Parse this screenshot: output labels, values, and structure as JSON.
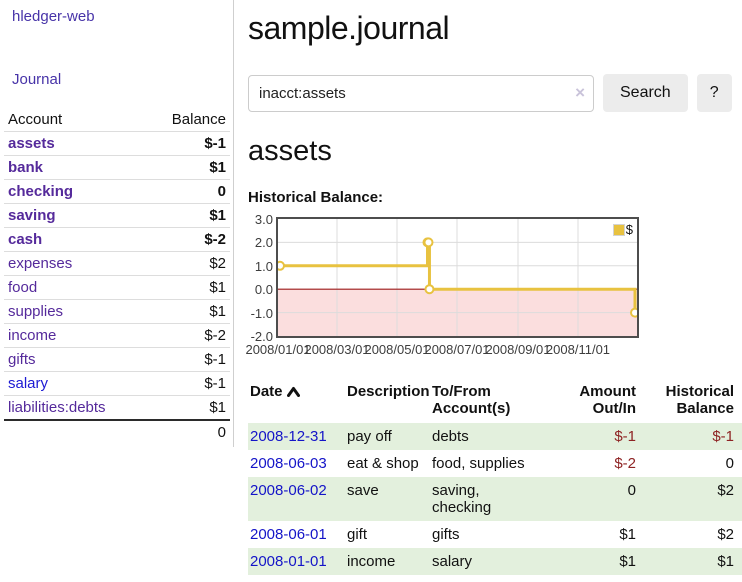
{
  "colors": {
    "link_purple": "#552a9b",
    "nav_purple": "#4733a8",
    "link_blue": "#1d1ad4",
    "date_blue": "#1414c8",
    "negative_strong": "#8b1c1c",
    "negative_soft": "#c47a7a",
    "row_green": "#e3f0dd",
    "series_gold": "#e8c240",
    "negative_area_pink": "#fbdede",
    "zero_line_red": "#9c1a1a"
  },
  "sidebar": {
    "brand": "hledger-web",
    "nav_journal": "Journal",
    "account_header": "Account",
    "balance_header": "Balance",
    "accounts": [
      {
        "name": "assets",
        "balance": "$-1"
      },
      {
        "name": "bank",
        "balance": "$1"
      },
      {
        "name": "checking",
        "balance": "0"
      },
      {
        "name": "saving",
        "balance": "$1"
      },
      {
        "name": "cash",
        "balance": "$-2"
      },
      {
        "name": "expenses",
        "balance": "$2"
      },
      {
        "name": "food",
        "balance": "$1"
      },
      {
        "name": "supplies",
        "balance": "$1"
      },
      {
        "name": "income",
        "balance": "$-2"
      },
      {
        "name": "gifts",
        "balance": "$-1"
      },
      {
        "name": "salary",
        "balance": "$-1"
      },
      {
        "name": "liabilities:debts",
        "balance": "$1"
      }
    ],
    "total": "0"
  },
  "main": {
    "title": "sample.journal",
    "search": {
      "value": "inacct:assets",
      "clear_icon": "×",
      "search_button": "Search",
      "help_button": "?"
    },
    "account_heading": "assets",
    "chart_label": "Historical Balance:"
  },
  "chart_data": {
    "type": "line",
    "title": "Historical Balance:",
    "xlim": [
      "2008-01-01",
      "2008-12-31"
    ],
    "ylim": [
      -2.0,
      3.0
    ],
    "grid": true,
    "grid_color": "#dcdcdc",
    "negative_fill": "#fbdede",
    "zero_line_color": "#9c1a1a",
    "legend_position": "top-right",
    "series": [
      {
        "name": "$",
        "color": "#e8c240",
        "points": [
          [
            "2008-01-01",
            1
          ],
          [
            "2008-06-01",
            2
          ],
          [
            "2008-06-02",
            2
          ],
          [
            "2008-06-03",
            0
          ],
          [
            "2008-12-31",
            -1
          ]
        ]
      }
    ],
    "y_ticks": [
      {
        "value": 3.0,
        "label": "3.0"
      },
      {
        "value": 2.0,
        "label": "2.0"
      },
      {
        "value": 1.0,
        "label": "1.0"
      },
      {
        "value": 0.0,
        "label": "0.0"
      },
      {
        "value": -1.0,
        "label": "-1.0"
      },
      {
        "value": -2.0,
        "label": "-2.0"
      }
    ],
    "x_ticks": [
      {
        "date": "2008-01-01",
        "label": "2008/01/01"
      },
      {
        "date": "2008-03-01",
        "label": "2008/03/01"
      },
      {
        "date": "2008-05-01",
        "label": "2008/05/01"
      },
      {
        "date": "2008-07-01",
        "label": "2008/07/01"
      },
      {
        "date": "2008-09-01",
        "label": "2008/09/01"
      },
      {
        "date": "2008-11-01",
        "label": "2008/11/01"
      }
    ]
  },
  "register": {
    "headers": {
      "date": "Date",
      "description": "Description",
      "accounts": "To/From\nAccount(s)",
      "amount": "Amount\nOut/In",
      "balance": "Historical\nBalance"
    },
    "rows": [
      {
        "date": "2008-12-31",
        "description": "pay off",
        "accounts": "debts",
        "amount": "$-1",
        "balance": "$-1"
      },
      {
        "date": "2008-06-03",
        "description": "eat & shop",
        "accounts": "food, supplies",
        "amount": "$-2",
        "balance": "0"
      },
      {
        "date": "2008-06-02",
        "description": "save",
        "accounts": "saving,\nchecking",
        "amount": "0",
        "balance": "$2"
      },
      {
        "date": "2008-06-01",
        "description": "gift",
        "accounts": "gifts",
        "amount": "$1",
        "balance": "$2"
      },
      {
        "date": "2008-01-01",
        "description": "income",
        "accounts": "salary",
        "amount": "$1",
        "balance": "$1"
      }
    ]
  }
}
